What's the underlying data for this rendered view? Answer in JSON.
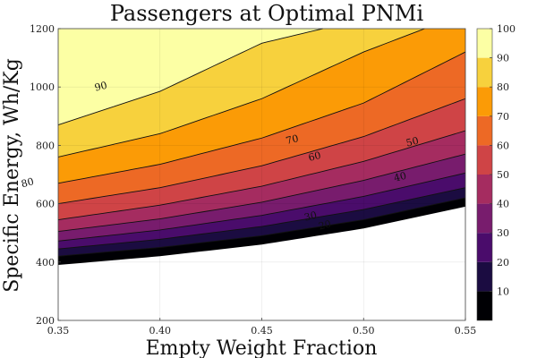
{
  "chart_data": {
    "type": "heatmap",
    "subtype": "filled-contour",
    "title": "Passengers at Optimal PNMi",
    "xlabel": "Empty Weight Fraction",
    "ylabel": "Specific Energy, Wh/Kg",
    "xlim": [
      0.35,
      0.55
    ],
    "ylim": [
      200,
      1200
    ],
    "xticks": [
      0.35,
      0.4,
      0.45,
      0.5,
      0.55
    ],
    "xtick_labels": [
      "0.35",
      "0.40",
      "0.45",
      "0.50",
      "0.55"
    ],
    "yticks": [
      200,
      400,
      600,
      800,
      1000,
      1200
    ],
    "ytick_labels": [
      "200",
      "400",
      "600",
      "800",
      "1000",
      "1200"
    ],
    "grid": true,
    "colorbar": {
      "ticks": [
        10,
        20,
        30,
        40,
        50,
        60,
        70,
        80,
        90,
        100
      ],
      "tick_labels": [
        "10",
        "20",
        "30",
        "40",
        "50",
        "60",
        "70",
        "80",
        "90",
        "100"
      ],
      "range": [
        0,
        100
      ],
      "colors": [
        "#000004",
        "#1b0c41",
        "#4a0c6b",
        "#781c6d",
        "#a52c60",
        "#cf4446",
        "#ed6925",
        "#fb9b06",
        "#f7d13d",
        "#fcffa4"
      ]
    },
    "levels": [
      10,
      20,
      30,
      40,
      50,
      60,
      70,
      80,
      90
    ],
    "contours": [
      {
        "level": 10,
        "x": [
          0.35,
          0.4,
          0.45,
          0.5,
          0.55
        ],
        "y": [
          420,
          450,
          490,
          545,
          620
        ]
      },
      {
        "level": 20,
        "x": [
          0.35,
          0.4,
          0.45,
          0.5,
          0.55
        ],
        "y": [
          445,
          478,
          522,
          580,
          655
        ]
      },
      {
        "level": 30,
        "x": [
          0.35,
          0.4,
          0.45,
          0.5,
          0.55
        ],
        "y": [
          472,
          510,
          560,
          625,
          705
        ]
      },
      {
        "level": 40,
        "x": [
          0.35,
          0.4,
          0.45,
          0.5,
          0.55
        ],
        "y": [
          505,
          548,
          605,
          680,
          770
        ]
      },
      {
        "level": 50,
        "x": [
          0.35,
          0.4,
          0.45,
          0.5,
          0.55
        ],
        "y": [
          545,
          595,
          660,
          745,
          850
        ]
      },
      {
        "level": 60,
        "x": [
          0.35,
          0.4,
          0.45,
          0.5,
          0.55
        ],
        "y": [
          600,
          655,
          730,
          830,
          960
        ]
      },
      {
        "level": 70,
        "x": [
          0.35,
          0.4,
          0.45,
          0.5,
          0.55
        ],
        "y": [
          670,
          735,
          825,
          945,
          1120
        ]
      },
      {
        "level": 80,
        "x": [
          0.35,
          0.4,
          0.45,
          0.5,
          0.53
        ],
        "y": [
          760,
          840,
          960,
          1120,
          1200
        ]
      },
      {
        "level": 90,
        "x": [
          0.35,
          0.4,
          0.45,
          0.48
        ],
        "y": [
          870,
          985,
          1150,
          1200
        ]
      }
    ],
    "contour_labels": [
      {
        "text": "90",
        "x": 0.371,
        "y": 1000
      },
      {
        "text": "80",
        "x": 0.335,
        "y": 670
      },
      {
        "text": "70",
        "x": 0.465,
        "y": 818
      },
      {
        "text": "60",
        "x": 0.476,
        "y": 760
      },
      {
        "text": "50",
        "x": 0.524,
        "y": 810
      },
      {
        "text": "40",
        "x": 0.518,
        "y": 690
      },
      {
        "text": "30",
        "x": 0.474,
        "y": 555
      },
      {
        "text": "20",
        "x": 0.481,
        "y": 525
      }
    ],
    "no_data_region": "white below lowest contour"
  }
}
